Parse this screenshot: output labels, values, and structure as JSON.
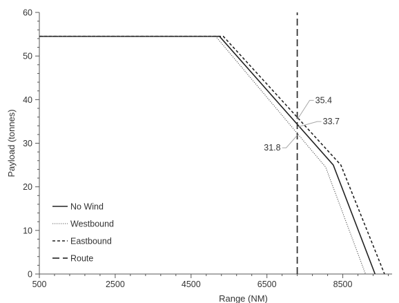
{
  "chart_data": {
    "type": "line",
    "title": "",
    "xlabel": "Range (NM)",
    "ylabel": "Payload (tonnes)",
    "xlim": [
      500,
      9800
    ],
    "ylim": [
      0,
      60
    ],
    "xticks": [
      500,
      2500,
      4500,
      6500,
      8500
    ],
    "yticks": [
      0,
      10,
      20,
      30,
      40,
      50,
      60
    ],
    "grid": false,
    "legend_position": "bottom-left",
    "series": [
      {
        "name": "No Wind",
        "style": "solid",
        "color": "#222222",
        "points": [
          [
            500,
            54.5
          ],
          [
            5250,
            54.5
          ],
          [
            8250,
            25
          ],
          [
            9350,
            0
          ]
        ]
      },
      {
        "name": "Westbound",
        "style": "dotted",
        "color": "#555555",
        "points": [
          [
            500,
            54.5
          ],
          [
            5150,
            54.5
          ],
          [
            8050,
            24.5
          ],
          [
            9100,
            0
          ]
        ]
      },
      {
        "name": "Eastbound",
        "style": "dashed",
        "color": "#222222",
        "points": [
          [
            500,
            54.5
          ],
          [
            5350,
            54.5
          ],
          [
            8450,
            25
          ],
          [
            9600,
            0
          ]
        ]
      },
      {
        "name": "Route",
        "style": "longdash",
        "color": "#333333",
        "points": [
          [
            7300,
            0
          ],
          [
            7300,
            60
          ]
        ]
      }
    ],
    "annotations": [
      {
        "text": "35.4",
        "x": 7300,
        "y": 35.4
      },
      {
        "text": "33.7",
        "x": 7300,
        "y": 33.7
      },
      {
        "text": "31.8",
        "x": 7300,
        "y": 31.8
      }
    ]
  }
}
